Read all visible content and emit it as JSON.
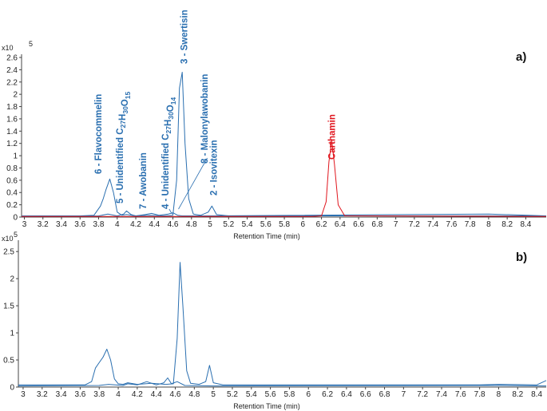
{
  "chart_data": [
    {
      "type": "line",
      "panel_label": "a)",
      "xlabel": "Retention Time (min)",
      "ylabel_multiplier": "x10",
      "ylabel_exponent": "5",
      "xlim": [
        2.97,
        8.62
      ],
      "ylim": [
        0,
        2.6
      ],
      "xticks": [
        "3",
        "3.2",
        "3.4",
        "3.6",
        "3.8",
        "4",
        "4.2",
        "4.4",
        "4.6",
        "4.8",
        "5",
        "5.2",
        "5.4",
        "5.6",
        "5.8",
        "6",
        "6.2",
        "6.4",
        "6.6",
        "6.8",
        "7",
        "7.2",
        "7.4",
        "7.6",
        "7.8",
        "8",
        "8.2",
        "8.4"
      ],
      "yticks": [
        "0",
        "0.2",
        "0.4",
        "0.6",
        "0.8",
        "1",
        "1.2",
        "1.4",
        "1.6",
        "1.8",
        "2",
        "2.2",
        "2.4",
        "2.6"
      ],
      "grid": false,
      "colors": {
        "main": "#2a6fb0",
        "highlight": "#e0161e"
      },
      "series": [
        {
          "color": "#2a6fb0",
          "x": [
            2.97,
            3.6,
            3.75,
            3.82,
            3.85,
            3.88,
            3.92,
            3.96,
            4.0,
            4.05,
            4.1,
            4.2,
            4.35,
            4.5,
            4.6,
            4.64,
            4.67,
            4.7,
            4.73,
            4.77,
            4.82,
            4.9,
            4.98,
            5.02,
            5.07,
            5.2,
            6.0,
            6.8,
            8.0,
            8.62
          ],
          "y": [
            0.02,
            0.02,
            0.03,
            0.18,
            0.3,
            0.45,
            0.62,
            0.4,
            0.08,
            0.03,
            0.04,
            0.02,
            0.03,
            0.02,
            0.03,
            0.6,
            2.1,
            2.36,
            1.2,
            0.3,
            0.05,
            0.03,
            0.08,
            0.18,
            0.04,
            0.02,
            0.02,
            0.02,
            0.02,
            0.02
          ]
        },
        {
          "color": "#2a6fb0",
          "x": [
            2.97,
            3.8,
            3.9,
            4.0,
            4.07,
            4.1,
            4.15,
            4.2,
            4.3,
            4.37,
            4.45,
            4.55,
            4.6,
            4.65,
            4.7,
            5.0,
            8.0,
            8.62
          ],
          "y": [
            0.01,
            0.02,
            0.05,
            0.02,
            0.05,
            0.1,
            0.04,
            0.02,
            0.04,
            0.06,
            0.03,
            0.05,
            0.07,
            0.03,
            0.02,
            0.02,
            0.05,
            0.02
          ]
        },
        {
          "color": "#e0161e",
          "x": [
            2.97,
            6.1,
            6.2,
            6.25,
            6.28,
            6.31,
            6.34,
            6.38,
            6.45,
            8.62
          ],
          "y": [
            0.01,
            0.01,
            0.02,
            0.25,
            0.9,
            1.25,
            0.85,
            0.2,
            0.02,
            0.01
          ]
        }
      ],
      "annotations": [
        {
          "text": "6 - Flavocommelin",
          "x": 3.88,
          "color": "#2a6fb0"
        },
        {
          "text": "5 - Unidentified C27H30O15",
          "x": 4.08,
          "color": "#2a6fb0"
        },
        {
          "text": "7 - Awobanin",
          "x": 4.33,
          "color": "#2a6fb0"
        },
        {
          "text": "4 - Unidentified C27H30O14",
          "x": 4.58,
          "color": "#2a6fb0"
        },
        {
          "text": "3 - Swertisin",
          "x": 4.72,
          "color": "#2a6fb0"
        },
        {
          "text": "8 - Malonylawobanin",
          "x": 4.82,
          "color": "#2a6fb0"
        },
        {
          "text": "2 - Isovitexin",
          "x": 5.02,
          "color": "#2a6fb0"
        },
        {
          "text": "Carthamin",
          "x": 6.31,
          "color": "#e0161e"
        }
      ]
    },
    {
      "type": "line",
      "panel_label": "b)",
      "xlabel": "Retention Time (min)",
      "ylabel_multiplier": "x10",
      "ylabel_exponent": "5",
      "xlim": [
        2.95,
        8.5
      ],
      "ylim": [
        0,
        2.65
      ],
      "xticks": [
        "3",
        "3.2",
        "3.4",
        "3.6",
        "3.8",
        "4",
        "4.2",
        "4.4",
        "4.6",
        "4.8",
        "5",
        "5.2",
        "5.4",
        "5.6",
        "5.8",
        "6",
        "6.2",
        "6.4",
        "6.6",
        "6.8",
        "7",
        "7.2",
        "7.4",
        "7.6",
        "7.8",
        "8",
        "8.2",
        "8.4"
      ],
      "yticks": [
        "0",
        "0.5",
        "1",
        "1.5",
        "2",
        "2.5"
      ],
      "grid": false,
      "colors": {
        "main": "#2a6fb0"
      },
      "series": [
        {
          "color": "#2a6fb0",
          "x": [
            2.95,
            3.65,
            3.72,
            3.76,
            3.8,
            3.84,
            3.88,
            3.92,
            3.96,
            4.0,
            4.05,
            4.1,
            4.2,
            4.35,
            4.5,
            4.58,
            4.62,
            4.65,
            4.68,
            4.72,
            4.76,
            4.85,
            4.92,
            4.96,
            5.0,
            5.1,
            6.0,
            7.8,
            8.0,
            8.4,
            8.5
          ],
          "y": [
            0.04,
            0.04,
            0.1,
            0.35,
            0.45,
            0.55,
            0.7,
            0.5,
            0.15,
            0.06,
            0.05,
            0.08,
            0.05,
            0.07,
            0.05,
            0.06,
            0.9,
            2.3,
            1.5,
            0.3,
            0.07,
            0.05,
            0.1,
            0.4,
            0.08,
            0.04,
            0.04,
            0.04,
            0.05,
            0.04,
            0.12
          ]
        },
        {
          "color": "#2a6fb0",
          "x": [
            2.95,
            3.8,
            3.9,
            4.05,
            4.1,
            4.2,
            4.3,
            4.4,
            4.48,
            4.52,
            4.56,
            4.62,
            4.7,
            5.0,
            8.0,
            8.5
          ],
          "y": [
            0.02,
            0.03,
            0.05,
            0.03,
            0.06,
            0.04,
            0.1,
            0.04,
            0.08,
            0.17,
            0.06,
            0.1,
            0.03,
            0.02,
            0.03,
            0.02
          ]
        }
      ],
      "annotations": []
    }
  ]
}
